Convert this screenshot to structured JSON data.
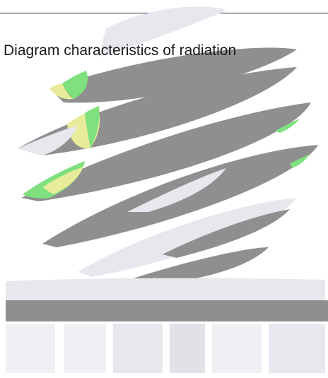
{
  "header": {
    "title": "Diagram characteristics of radiation"
  },
  "palette": {
    "blade_gray": "#8f8f8f",
    "blade_light": "#e6e8ee",
    "accent_green": "#7ee07e",
    "accent_yellow": "#e8ec9a",
    "rule": "#2b2b44"
  }
}
